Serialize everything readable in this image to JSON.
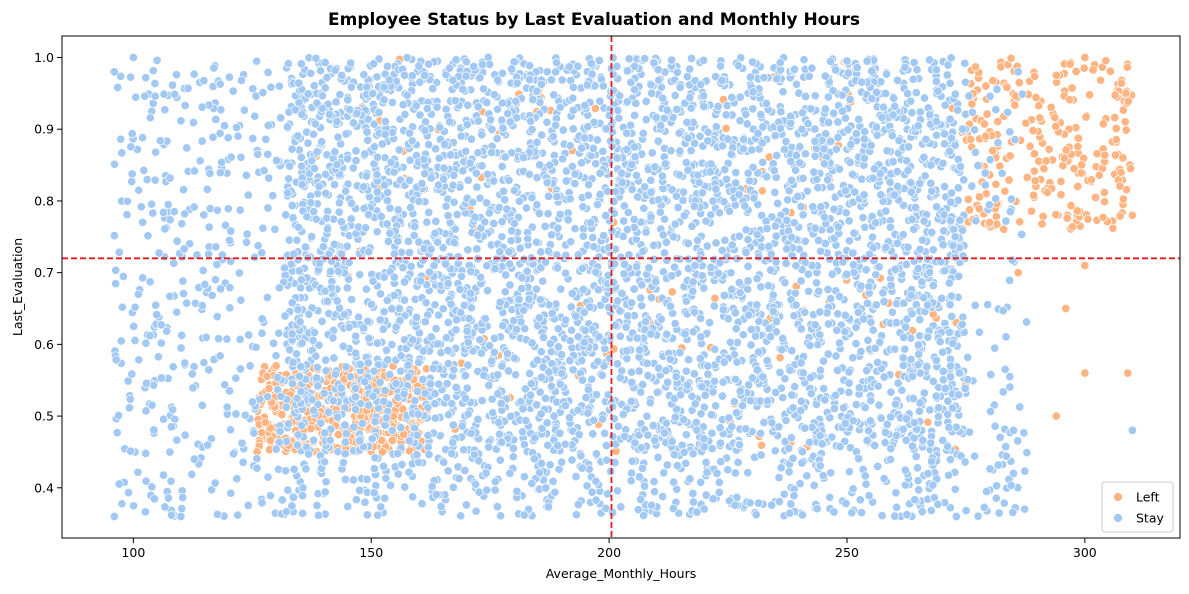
{
  "chart_data": {
    "type": "scatter",
    "title": "Employee Status by Last Evaluation and Monthly Hours",
    "xlabel": "Average_Monthly_Hours",
    "ylabel": "Last_Evaluation",
    "xlim": [
      85,
      320
    ],
    "ylim": [
      0.33,
      1.03
    ],
    "xticks": [
      100,
      150,
      200,
      250,
      300
    ],
    "yticks": [
      0.4,
      0.5,
      0.6,
      0.7,
      0.8,
      0.9,
      1.0
    ],
    "xtick_labels": [
      "100",
      "150",
      "200",
      "250",
      "300"
    ],
    "ytick_labels": [
      "0.4",
      "0.5",
      "0.6",
      "0.7",
      "0.8",
      "0.9",
      "1.0"
    ],
    "reference_lines": {
      "vertical_x": 200.5,
      "horizontal_y": 0.72,
      "color": "#e41a1c",
      "style": "dashed"
    },
    "legend_position": "bottom-right",
    "grid": false,
    "series": [
      {
        "name": "Left",
        "color": "#ffb482",
        "clusters": [
          {
            "x_range": [
              126,
              162
            ],
            "y_range": [
              0.45,
              0.57
            ],
            "approx_points": 420
          },
          {
            "x_range": [
              275,
              310
            ],
            "y_range": [
              0.76,
              1.0
            ],
            "approx_points": 260
          },
          {
            "x_range": [
              132,
              275
            ],
            "y_range": [
              0.45,
              1.0
            ],
            "approx_points": 120
          }
        ],
        "sample_points": [
          [
            126,
            0.45
          ],
          [
            130,
            0.57
          ],
          [
            162,
            0.46
          ],
          [
            280,
            0.77
          ],
          [
            300,
            1.0
          ],
          [
            310,
            0.78
          ],
          [
            308,
            0.86
          ],
          [
            294,
            0.5
          ],
          [
            300,
            0.56
          ],
          [
            309,
            0.56
          ],
          [
            296,
            0.65
          ],
          [
            300,
            0.71
          ],
          [
            286,
            0.7
          ]
        ]
      },
      {
        "name": "Stay",
        "color": "#a1c9f4",
        "clusters": [
          {
            "x_range": [
              132,
              275
            ],
            "y_range": [
              0.45,
              1.0
            ],
            "approx_points": 4200
          },
          {
            "x_range": [
              96,
              132
            ],
            "y_range": [
              0.36,
              1.0
            ],
            "approx_points": 380
          },
          {
            "x_range": [
              132,
              288
            ],
            "y_range": [
              0.36,
              0.45
            ],
            "approx_points": 420
          },
          {
            "x_range": [
              275,
              288
            ],
            "y_range": [
              0.45,
              0.98
            ],
            "approx_points": 60
          }
        ],
        "sample_points": [
          [
            96,
            0.98
          ],
          [
            100,
            1.0
          ],
          [
            96,
            0.36
          ],
          [
            110,
            0.36
          ],
          [
            310,
            0.48
          ],
          [
            285,
            0.42
          ],
          [
            286,
            0.98
          ],
          [
            273,
            0.36
          ]
        ]
      }
    ]
  }
}
